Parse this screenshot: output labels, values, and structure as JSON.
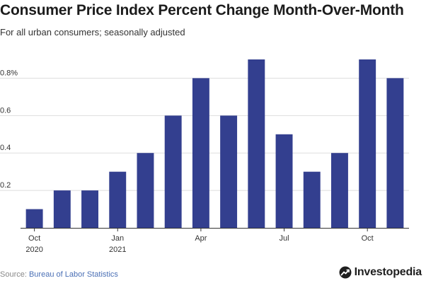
{
  "header": {
    "title": "Consumer Price Index Percent Change Month-Over-Month",
    "subtitle": "For all urban consumers; seasonally adjusted"
  },
  "footer": {
    "source_label": "Source: ",
    "source_name": "Bureau of Labor Statistics",
    "brand_name": "Investopedia"
  },
  "colors": {
    "bar": "#333f8f",
    "grid": "#dddddd",
    "axis": "#333333",
    "source_link": "#4a6fb5"
  },
  "chart_data": {
    "type": "bar",
    "categories": [
      "Oct 2020",
      "Nov 2020",
      "Dec 2020",
      "Jan 2021",
      "Feb 2021",
      "Mar 2021",
      "Apr 2021",
      "May 2021",
      "Jun 2021",
      "Jul 2021",
      "Aug 2021",
      "Sep 2021",
      "Oct 2021",
      "Nov 2021"
    ],
    "values": [
      0.1,
      0.2,
      0.2,
      0.3,
      0.4,
      0.6,
      0.8,
      0.6,
      0.9,
      0.5,
      0.3,
      0.4,
      0.9,
      0.8
    ],
    "ylim": [
      0,
      0.9
    ],
    "yticks": [
      {
        "value": 0.2,
        "label": "0.2"
      },
      {
        "value": 0.4,
        "label": "0.4"
      },
      {
        "value": 0.6,
        "label": "0.6"
      },
      {
        "value": 0.8,
        "label": "0.8%"
      }
    ],
    "xticks": [
      {
        "index": 0,
        "line1": "Oct",
        "line2": "2020"
      },
      {
        "index": 3,
        "line1": "Jan",
        "line2": "2021"
      },
      {
        "index": 6,
        "line1": "Apr",
        "line2": ""
      },
      {
        "index": 9,
        "line1": "Jul",
        "line2": ""
      },
      {
        "index": 12,
        "line1": "Oct",
        "line2": ""
      }
    ],
    "grid": true,
    "legend": "none"
  }
}
